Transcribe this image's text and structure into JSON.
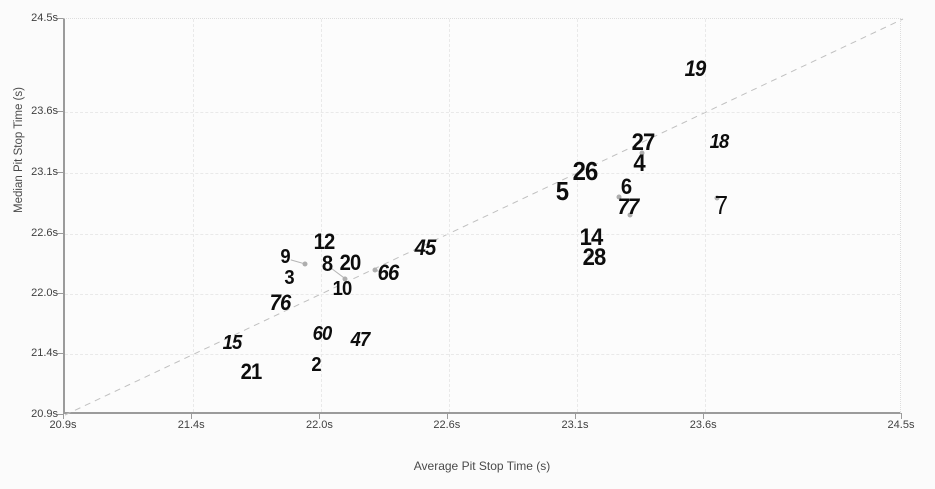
{
  "page": {
    "background": "#fbfbfb"
  },
  "colors": {
    "axis_line": "#9b9b9b",
    "grid_line": "#e9e9e9",
    "tick_text": "#3f3f3f",
    "axis_title_text": "#4a4a4a",
    "point_text": "#0d0d0d",
    "marker_dot": "#aeaeae",
    "reference_line": "#c0c0c0"
  },
  "chart_data": {
    "type": "scatter",
    "title": "",
    "xlabel": "Average Pit Stop Time (s)",
    "ylabel": "Median Pit Stop Time (s)",
    "xlim": [
      20.9,
      24.5
    ],
    "ylim": [
      20.9,
      24.5
    ],
    "grid": "dashed",
    "legend": "none",
    "x_ticks": [
      {
        "label": "20.9s",
        "f": 0
      },
      {
        "label": "21.4s",
        "f": 0.153
      },
      {
        "label": "22.0s",
        "f": 0.306
      },
      {
        "label": "22.6s",
        "f": 0.458
      },
      {
        "label": "23.1s",
        "f": 0.611
      },
      {
        "label": "23.6s",
        "f": 0.764
      },
      {
        "label": "24.5s",
        "f": 1
      }
    ],
    "y_ticks": [
      {
        "label": "20.9s",
        "f": 0
      },
      {
        "label": "21.4s",
        "f": 0.153
      },
      {
        "label": "22.0s",
        "f": 0.306
      },
      {
        "label": "22.6s",
        "f": 0.458
      },
      {
        "label": "23.1s",
        "f": 0.611
      },
      {
        "label": "23.6s",
        "f": 0.764
      },
      {
        "label": "24.5s",
        "f": 1
      }
    ],
    "reference_line": {
      "kind": "y-equals-x",
      "from": [
        20.9,
        20.9
      ],
      "to": [
        24.5,
        24.5
      ],
      "style": "dashed"
    },
    "points": [
      {
        "label": "19",
        "x": 23.607,
        "y": 24.045,
        "style": "bi",
        "size": 22
      },
      {
        "label": "18",
        "x": 23.71,
        "y": 23.382,
        "style": "bi",
        "size": 20
      },
      {
        "label": "27",
        "x": 23.383,
        "y": 23.373,
        "style": "plain",
        "size": 24
      },
      {
        "label": "4",
        "x": 23.366,
        "y": 23.182,
        "style": "plain",
        "size": 24
      },
      {
        "label": "26",
        "x": 23.134,
        "y": 23.118,
        "style": "plain",
        "size": 26
      },
      {
        "label": "5",
        "x": 23.035,
        "y": 22.936,
        "style": "plain",
        "size": 26
      },
      {
        "label": "6",
        "x": 23.31,
        "y": 22.973,
        "style": "plain",
        "size": 22
      },
      {
        "label": "77",
        "x": 23.319,
        "y": 22.791,
        "style": "bi",
        "size": 22
      },
      {
        "label": "7",
        "x": 23.718,
        "y": 22.809,
        "style": "thin",
        "size": 26
      },
      {
        "label": "14",
        "x": 23.16,
        "y": 22.509,
        "style": "plain",
        "size": 24
      },
      {
        "label": "28",
        "x": 23.173,
        "y": 22.327,
        "style": "plain",
        "size": 24
      },
      {
        "label": "45",
        "x": 22.447,
        "y": 22.418,
        "style": "bi",
        "size": 22
      },
      {
        "label": "12",
        "x": 22.013,
        "y": 22.473,
        "style": "plain",
        "size": 22
      },
      {
        "label": "9",
        "x": 21.845,
        "y": 22.336,
        "style": "plain",
        "size": 20
      },
      {
        "label": "8",
        "x": 22.026,
        "y": 22.273,
        "style": "plain",
        "size": 22
      },
      {
        "label": "20",
        "x": 22.125,
        "y": 22.282,
        "style": "plain",
        "size": 22
      },
      {
        "label": "66",
        "x": 22.288,
        "y": 22.191,
        "style": "bi",
        "size": 22
      },
      {
        "label": "3",
        "x": 21.862,
        "y": 22.145,
        "style": "plain",
        "size": 20
      },
      {
        "label": "10",
        "x": 22.09,
        "y": 22.045,
        "style": "plain",
        "size": 20
      },
      {
        "label": "76",
        "x": 21.824,
        "y": 21.918,
        "style": "bi",
        "size": 22
      },
      {
        "label": "60",
        "x": 22.004,
        "y": 21.636,
        "style": "bi",
        "size": 20
      },
      {
        "label": "47",
        "x": 22.167,
        "y": 21.582,
        "style": "bi",
        "size": 20
      },
      {
        "label": "15",
        "x": 21.617,
        "y": 21.555,
        "style": "bi",
        "size": 20
      },
      {
        "label": "2",
        "x": 21.978,
        "y": 21.355,
        "style": "plain",
        "size": 20
      },
      {
        "label": "21",
        "x": 21.699,
        "y": 21.291,
        "style": "plain",
        "size": 22
      }
    ],
    "markers": [
      {
        "x": 21.932,
        "y": 22.273
      },
      {
        "x": 22.103,
        "y": 22.14
      },
      {
        "x": 22.23,
        "y": 22.218
      },
      {
        "x": 23.379,
        "y": 23.282
      },
      {
        "x": 23.28,
        "y": 22.882
      },
      {
        "x": 23.327,
        "y": 22.718
      },
      {
        "x": 23.155,
        "y": 22.345
      },
      {
        "x": 23.701,
        "y": 22.873
      }
    ],
    "leader_lines": [
      {
        "x1": 21.87,
        "y1": 22.31,
        "x2": 21.932,
        "y2": 22.273
      },
      {
        "x1": 22.04,
        "y1": 22.24,
        "x2": 22.1,
        "y2": 22.145
      },
      {
        "x1": 22.262,
        "y1": 22.2,
        "x2": 22.232,
        "y2": 22.216
      }
    ]
  }
}
